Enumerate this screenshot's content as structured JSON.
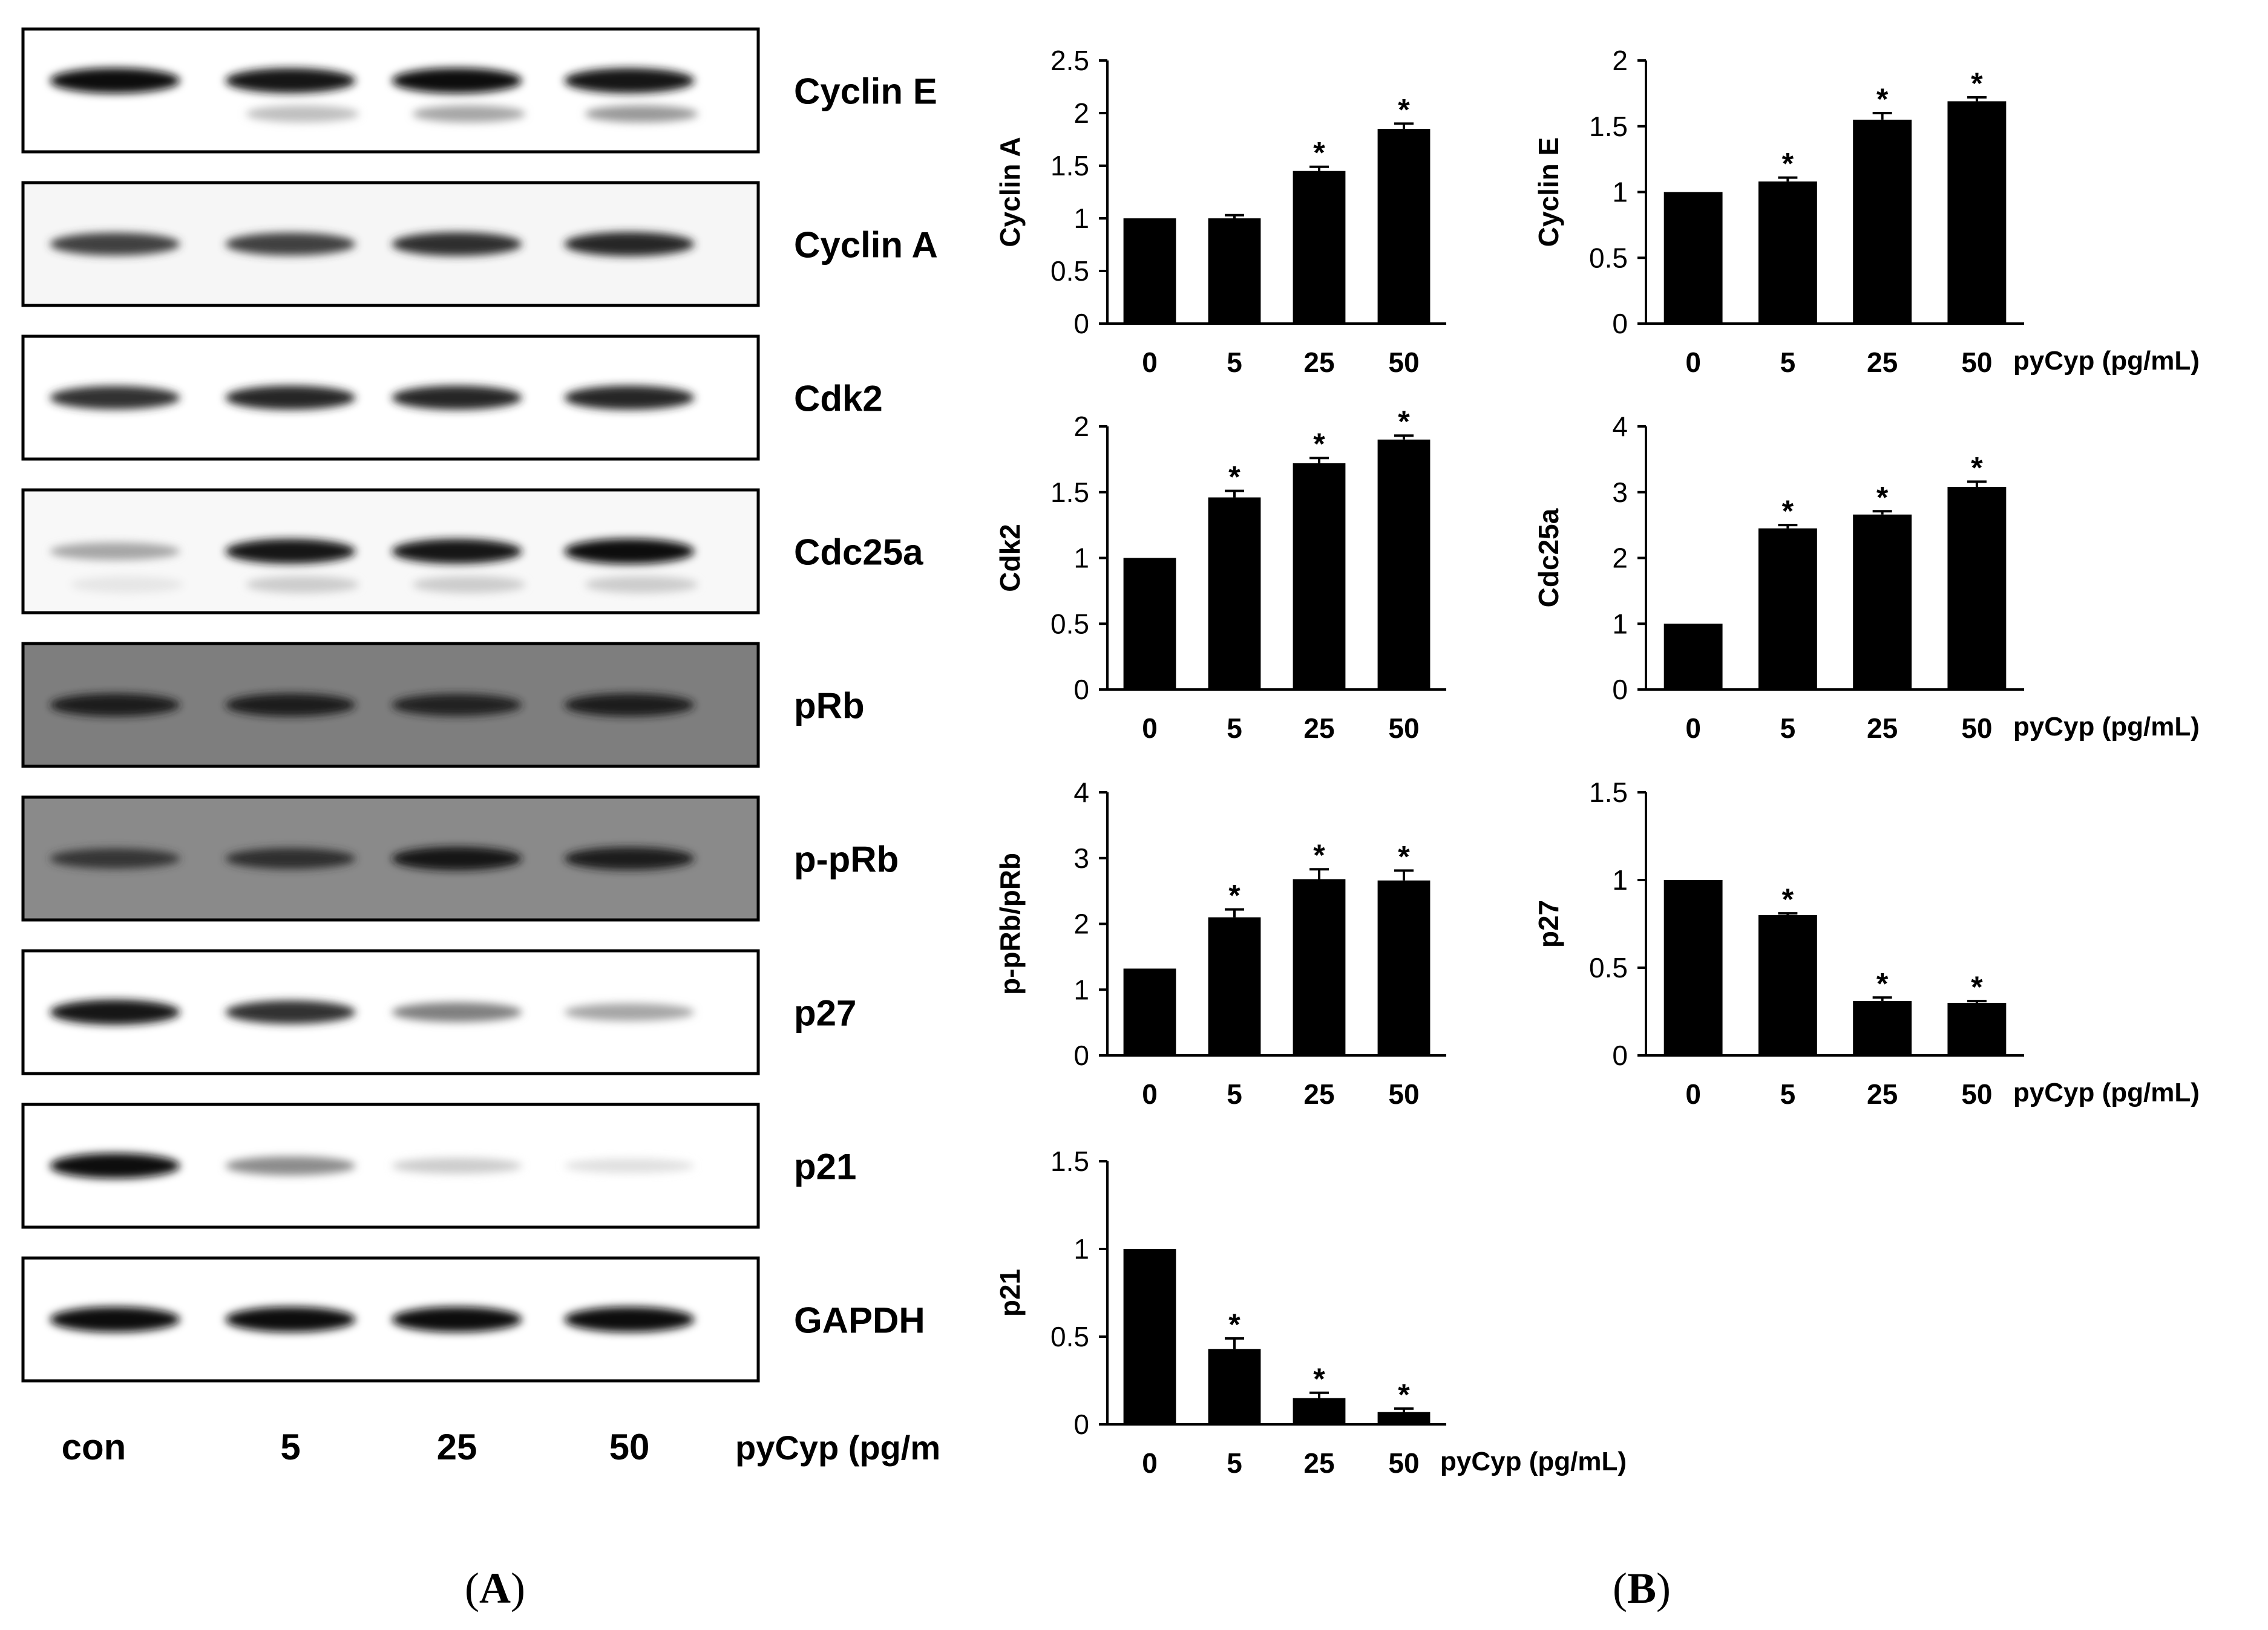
{
  "blots": {
    "bands": [
      {
        "label": "Cyclin E",
        "intensity": [
          0.95,
          0.92,
          0.95,
          0.93
        ],
        "background": "#ffffff",
        "secondary": [
          0.0,
          0.25,
          0.35,
          0.4
        ]
      },
      {
        "label": "Cyclin A",
        "intensity": [
          0.75,
          0.75,
          0.82,
          0.85
        ],
        "background": "#f6f6f6",
        "secondary": [
          0,
          0,
          0,
          0
        ]
      },
      {
        "label": "Cdk2",
        "intensity": [
          0.8,
          0.85,
          0.85,
          0.85
        ],
        "background": "#ffffff",
        "secondary": [
          0,
          0,
          0,
          0
        ]
      },
      {
        "label": "Cdc25a",
        "intensity": [
          0.35,
          0.9,
          0.9,
          0.95
        ],
        "background": "#f8f8f8",
        "secondary": [
          0.1,
          0.2,
          0.2,
          0.2
        ]
      },
      {
        "label": "pRb",
        "intensity": [
          0.75,
          0.75,
          0.7,
          0.75
        ],
        "background": "#7e7e7e",
        "secondary": [
          0,
          0,
          0,
          0
        ]
      },
      {
        "label": "p-pRb",
        "intensity": [
          0.55,
          0.6,
          0.8,
          0.75
        ],
        "background": "#8a8a8a",
        "secondary": [
          0,
          0,
          0,
          0
        ]
      },
      {
        "label": "p27",
        "intensity": [
          0.92,
          0.8,
          0.5,
          0.35
        ],
        "background": "#ffffff",
        "secondary": [
          0,
          0,
          0,
          0
        ]
      },
      {
        "label": "p21",
        "intensity": [
          0.95,
          0.45,
          0.2,
          0.12
        ],
        "background": "#ffffff",
        "secondary": [
          0,
          0,
          0,
          0
        ]
      },
      {
        "label": "GAPDH",
        "intensity": [
          0.95,
          0.95,
          0.95,
          0.95
        ],
        "background": "#ffffff",
        "secondary": [
          0,
          0,
          0,
          0
        ]
      }
    ],
    "lanes": [
      "con",
      "5",
      "25",
      "50"
    ],
    "xlabel": "pyCyp (pg/m"
  },
  "panel_labels": {
    "A_open": "(",
    "A": "A",
    "A_close": ")",
    "B_open": "(",
    "B": "B",
    "B_close": ")"
  },
  "chart_data": [
    {
      "type": "bar",
      "categories": [
        "0",
        "5",
        "25",
        "50"
      ],
      "values": [
        1.0,
        1.0,
        1.45,
        1.85
      ],
      "errors": [
        0,
        0.03,
        0.04,
        0.05
      ],
      "significant": [
        false,
        false,
        true,
        true
      ],
      "ylabel": "Cyclin A",
      "ylim": [
        0,
        2.5
      ],
      "yticks": [
        "0",
        "0.5",
        "1",
        "1.5",
        "2",
        "2.5"
      ],
      "xlabel": ""
    },
    {
      "type": "bar",
      "categories": [
        "0",
        "5",
        "25",
        "50"
      ],
      "values": [
        1.0,
        1.08,
        1.55,
        1.69
      ],
      "errors": [
        0,
        0.03,
        0.05,
        0.03
      ],
      "significant": [
        false,
        true,
        true,
        true
      ],
      "ylabel": "Cyclin E",
      "ylim": [
        0,
        2
      ],
      "yticks": [
        "0",
        "0.5",
        "1",
        "1.5",
        "2"
      ],
      "xlabel": "pyCyp  (pg/mL)"
    },
    {
      "type": "bar",
      "categories": [
        "0",
        "5",
        "25",
        "50"
      ],
      "values": [
        1.0,
        1.46,
        1.72,
        1.9
      ],
      "errors": [
        0,
        0.05,
        0.04,
        0.03
      ],
      "significant": [
        false,
        true,
        true,
        true
      ],
      "ylabel": "Cdk2",
      "ylim": [
        0,
        2
      ],
      "yticks": [
        "0",
        "0.5",
        "1",
        "1.5",
        "2"
      ],
      "xlabel": ""
    },
    {
      "type": "bar",
      "categories": [
        "0",
        "5",
        "25",
        "50"
      ],
      "values": [
        1.0,
        2.45,
        2.66,
        3.08
      ],
      "errors": [
        0,
        0.05,
        0.05,
        0.08
      ],
      "significant": [
        false,
        true,
        true,
        true
      ],
      "ylabel": "Cdc25a",
      "ylim": [
        0,
        4
      ],
      "yticks": [
        "0",
        "1",
        "2",
        "3",
        "4"
      ],
      "xlabel": "pyCyp  (pg/mL)"
    },
    {
      "type": "bar",
      "categories": [
        "0",
        "5",
        "25",
        "50"
      ],
      "values": [
        1.32,
        2.1,
        2.68,
        2.66
      ],
      "errors": [
        0,
        0.12,
        0.15,
        0.15
      ],
      "significant": [
        false,
        true,
        true,
        true
      ],
      "ylabel": "p-pRb/pRb",
      "ylim": [
        0,
        4
      ],
      "yticks": [
        "0",
        "1",
        "2",
        "3",
        "4"
      ],
      "xlabel": ""
    },
    {
      "type": "bar",
      "categories": [
        "0",
        "5",
        "25",
        "50"
      ],
      "values": [
        1.0,
        0.8,
        0.31,
        0.3
      ],
      "errors": [
        0,
        0.01,
        0.02,
        0.01
      ],
      "significant": [
        false,
        true,
        true,
        true
      ],
      "ylabel": "p27",
      "ylim": [
        0,
        1.5
      ],
      "yticks": [
        "0",
        "0.5",
        "1",
        "1.5"
      ],
      "xlabel": "pyCyp  (pg/mL)"
    },
    {
      "type": "bar",
      "categories": [
        "0",
        "5",
        "25",
        "50"
      ],
      "values": [
        1.0,
        0.43,
        0.15,
        0.07
      ],
      "errors": [
        0,
        0.06,
        0.03,
        0.02
      ],
      "significant": [
        false,
        true,
        true,
        true
      ],
      "ylabel": "p21",
      "ylim": [
        0,
        1.5
      ],
      "yticks": [
        "0",
        "0.5",
        "1",
        "1.5"
      ],
      "xlabel": "pyCyp  (pg/mL)"
    }
  ]
}
